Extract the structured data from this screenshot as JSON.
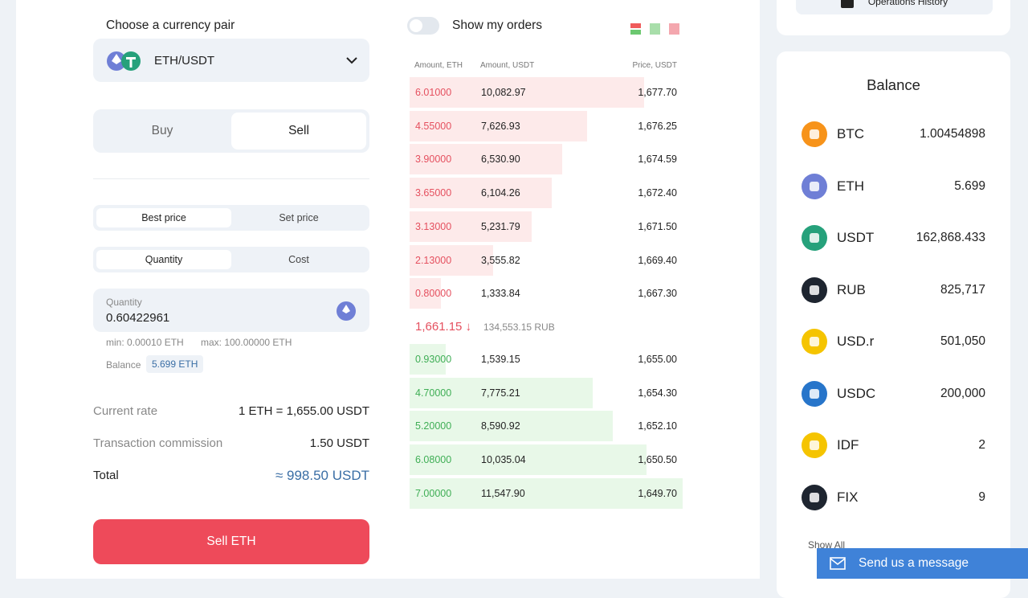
{
  "trade": {
    "pair_label": "Choose a currency pair",
    "pair": "ETH/USDT",
    "tabs": [
      "Buy",
      "Sell"
    ],
    "price_modes": [
      "Best price",
      "Set price"
    ],
    "amount_modes": [
      "Quantity",
      "Cost"
    ],
    "quantity_label": "Quantity",
    "quantity": "0.60422961",
    "min": "min: 0.00010 ETH",
    "max": "max: 100.00000 ETH",
    "balance_label": "Balance",
    "balance": "5.699 ETH",
    "summary": [
      {
        "label": "Current rate",
        "value": "1 ETH = 1,655.00 USDT"
      },
      {
        "label": "Transaction commission",
        "value": "1.50 USDT"
      },
      {
        "label": "Total",
        "value": "≈ 998.50 USDT"
      }
    ],
    "submit": "Sell ETH"
  },
  "orderbook": {
    "toggle_label": "Show my orders",
    "headers": [
      "Amount, ETH",
      "Amount, USDT",
      "Price, USDT"
    ],
    "asks": [
      [
        "6.01000",
        "10,082.97",
        "1,677.70"
      ],
      [
        "4.55000",
        "7,626.93",
        "1,676.25"
      ],
      [
        "3.90000",
        "6,530.90",
        "1,674.59"
      ],
      [
        "3.65000",
        "6,104.26",
        "1,672.40"
      ],
      [
        "3.13000",
        "5,231.79",
        "1,671.50"
      ],
      [
        "2.13000",
        "3,555.82",
        "1,669.40"
      ],
      [
        "0.80000",
        "1,333.84",
        "1,667.30"
      ]
    ],
    "last_price": "1,661.15",
    "last_price_rub": "134,553.15 RUB",
    "bids": [
      [
        "0.93000",
        "1,539.15",
        "1,655.00"
      ],
      [
        "4.70000",
        "7,775.21",
        "1,654.30"
      ],
      [
        "5.20000",
        "8,590.92",
        "1,652.10"
      ],
      [
        "6.08000",
        "10,035.04",
        "1,650.50"
      ],
      [
        "7.00000",
        "11,547.90",
        "1,649.70"
      ]
    ]
  },
  "sidebar": {
    "operations_history": "Operations History",
    "balance_title": "Balance",
    "assets": [
      {
        "symbol": "BTC",
        "amount": "1.00454898"
      },
      {
        "symbol": "ETH",
        "amount": "5.699"
      },
      {
        "symbol": "USDT",
        "amount": "162,868.433"
      },
      {
        "symbol": "RUB",
        "amount": "825,717"
      },
      {
        "symbol": "USD.r",
        "amount": "501,050"
      },
      {
        "symbol": "USDC",
        "amount": "200,000"
      },
      {
        "symbol": "IDF",
        "amount": "2"
      },
      {
        "symbol": "FIX",
        "amount": "9"
      }
    ],
    "show_all": "Show All"
  },
  "chat": "Send us a message"
}
